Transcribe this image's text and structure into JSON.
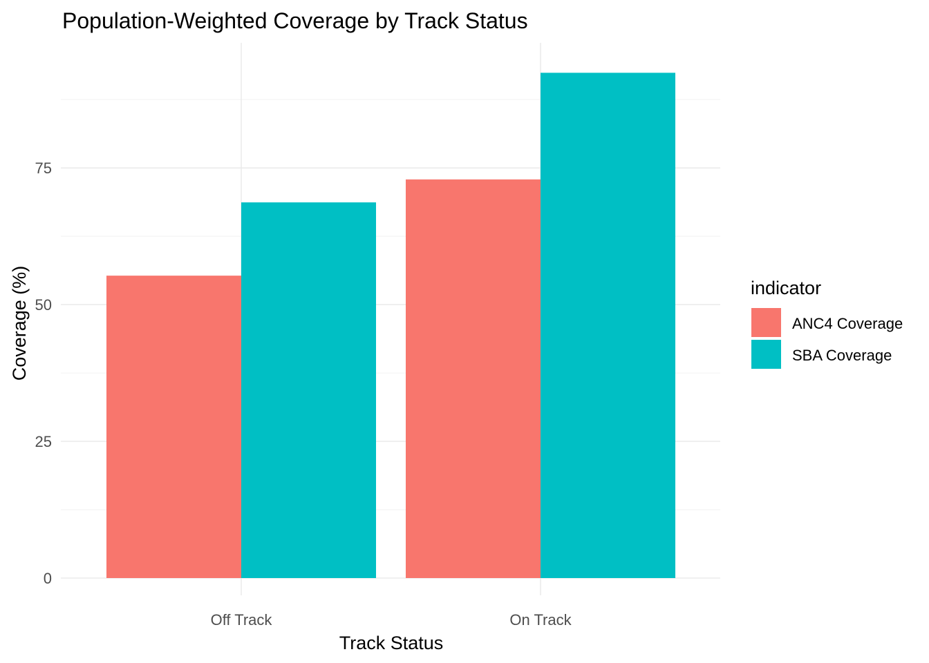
{
  "chart_data": {
    "type": "bar",
    "title": "Population-Weighted Coverage by Track Status",
    "xlabel": "Track Status",
    "ylabel": "Coverage (%)",
    "categories": [
      "Off Track",
      "On Track"
    ],
    "series": [
      {
        "name": "ANC4 Coverage",
        "color": "#F8766D",
        "values": [
          55.3,
          72.9
        ]
      },
      {
        "name": "SBA Coverage",
        "color": "#00BFC4",
        "values": [
          68.7,
          92.4
        ]
      }
    ],
    "ylim": [
      0,
      97.5
    ],
    "yticks": [
      0,
      25,
      50,
      75
    ],
    "y_minor_ticks": [
      12.5,
      37.5,
      62.5,
      87.5
    ],
    "grid": true,
    "legend": {
      "title": "indicator",
      "position": "right"
    }
  }
}
